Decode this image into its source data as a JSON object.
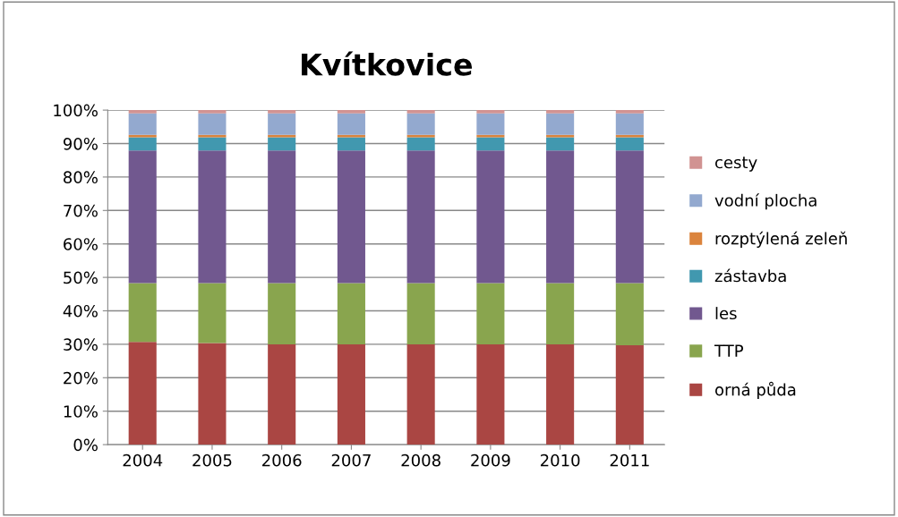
{
  "chart_data": {
    "type": "bar",
    "title": "Kvítkovice",
    "stacked": true,
    "categories": [
      "2004",
      "2005",
      "2006",
      "2007",
      "2008",
      "2009",
      "2010",
      "2011"
    ],
    "series": [
      {
        "name": "orná půda",
        "color": "#aa4643",
        "values": [
          30.7,
          30.4,
          30.0,
          30.0,
          30.0,
          30.0,
          30.0,
          29.7
        ]
      },
      {
        "name": "TTP",
        "color": "#89a54e",
        "values": [
          17.6,
          17.9,
          18.3,
          18.3,
          18.3,
          18.3,
          18.3,
          18.6
        ]
      },
      {
        "name": "les",
        "color": "#71588f",
        "values": [
          39.6,
          39.6,
          39.6,
          39.6,
          39.6,
          39.6,
          39.6,
          39.6
        ]
      },
      {
        "name": "zástavba",
        "color": "#4198af",
        "values": [
          4.0,
          4.0,
          4.0,
          4.0,
          4.0,
          4.0,
          4.0,
          4.0
        ]
      },
      {
        "name": "rozptýlená zeleň",
        "color": "#db843d",
        "values": [
          0.7,
          0.7,
          0.7,
          0.7,
          0.7,
          0.7,
          0.7,
          0.7
        ]
      },
      {
        "name": "vodní plocha",
        "color": "#93a9cf",
        "values": [
          6.4,
          6.4,
          6.4,
          6.4,
          6.4,
          6.4,
          6.4,
          6.4
        ]
      },
      {
        "name": "cesty",
        "color": "#d19392",
        "values": [
          1.0,
          1.0,
          1.0,
          1.0,
          1.0,
          1.0,
          1.0,
          1.0
        ]
      }
    ],
    "ylim": [
      0,
      100
    ],
    "yticks": [
      {
        "value": 0,
        "label": "0%"
      },
      {
        "value": 10,
        "label": "10%"
      },
      {
        "value": 20,
        "label": "20%"
      },
      {
        "value": 30,
        "label": "30%"
      },
      {
        "value": 40,
        "label": "40%"
      },
      {
        "value": 50,
        "label": "50%"
      },
      {
        "value": 60,
        "label": "60%"
      },
      {
        "value": 70,
        "label": "70%"
      },
      {
        "value": 80,
        "label": "80%"
      },
      {
        "value": 90,
        "label": "90%"
      },
      {
        "value": 100,
        "label": "100%"
      }
    ],
    "grid": "y",
    "legend": "right"
  }
}
